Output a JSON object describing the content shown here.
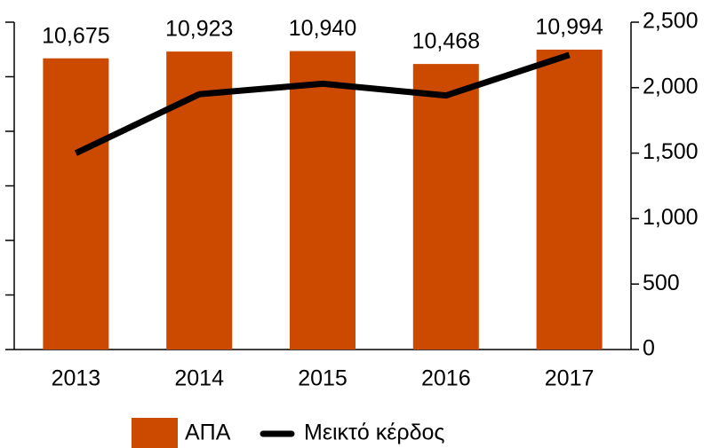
{
  "chart_data": {
    "type": "bar_line",
    "categories": [
      "2013",
      "2014",
      "2015",
      "2016",
      "2017"
    ],
    "series": [
      {
        "name": "ΑΠΑ",
        "type": "bar",
        "color": "#cc4a00",
        "values": [
          10675,
          10923,
          10940,
          10468,
          10994
        ],
        "value_labels": [
          "10,675",
          "10,923",
          "10,940",
          "10,468",
          "10,994"
        ]
      },
      {
        "name": "Μεικτό κέρδος",
        "type": "line",
        "axis": "y2",
        "color": "#000000",
        "values": [
          1500,
          1950,
          2030,
          1940,
          2250
        ]
      }
    ],
    "ylim": [
      0,
      12000
    ],
    "yticks": [
      0,
      2000,
      4000,
      6000,
      8000,
      10000,
      12000
    ],
    "y2lim": [
      0,
      2500
    ],
    "y2ticks": [
      0,
      500,
      {
        "value": 1000,
        "label": "1,000"
      },
      {
        "value": 1500,
        "label": "1,500"
      },
      {
        "value": 2000,
        "label": "2,000"
      },
      {
        "value": 2500,
        "label": "2,500"
      }
    ],
    "legend": "bottom"
  }
}
